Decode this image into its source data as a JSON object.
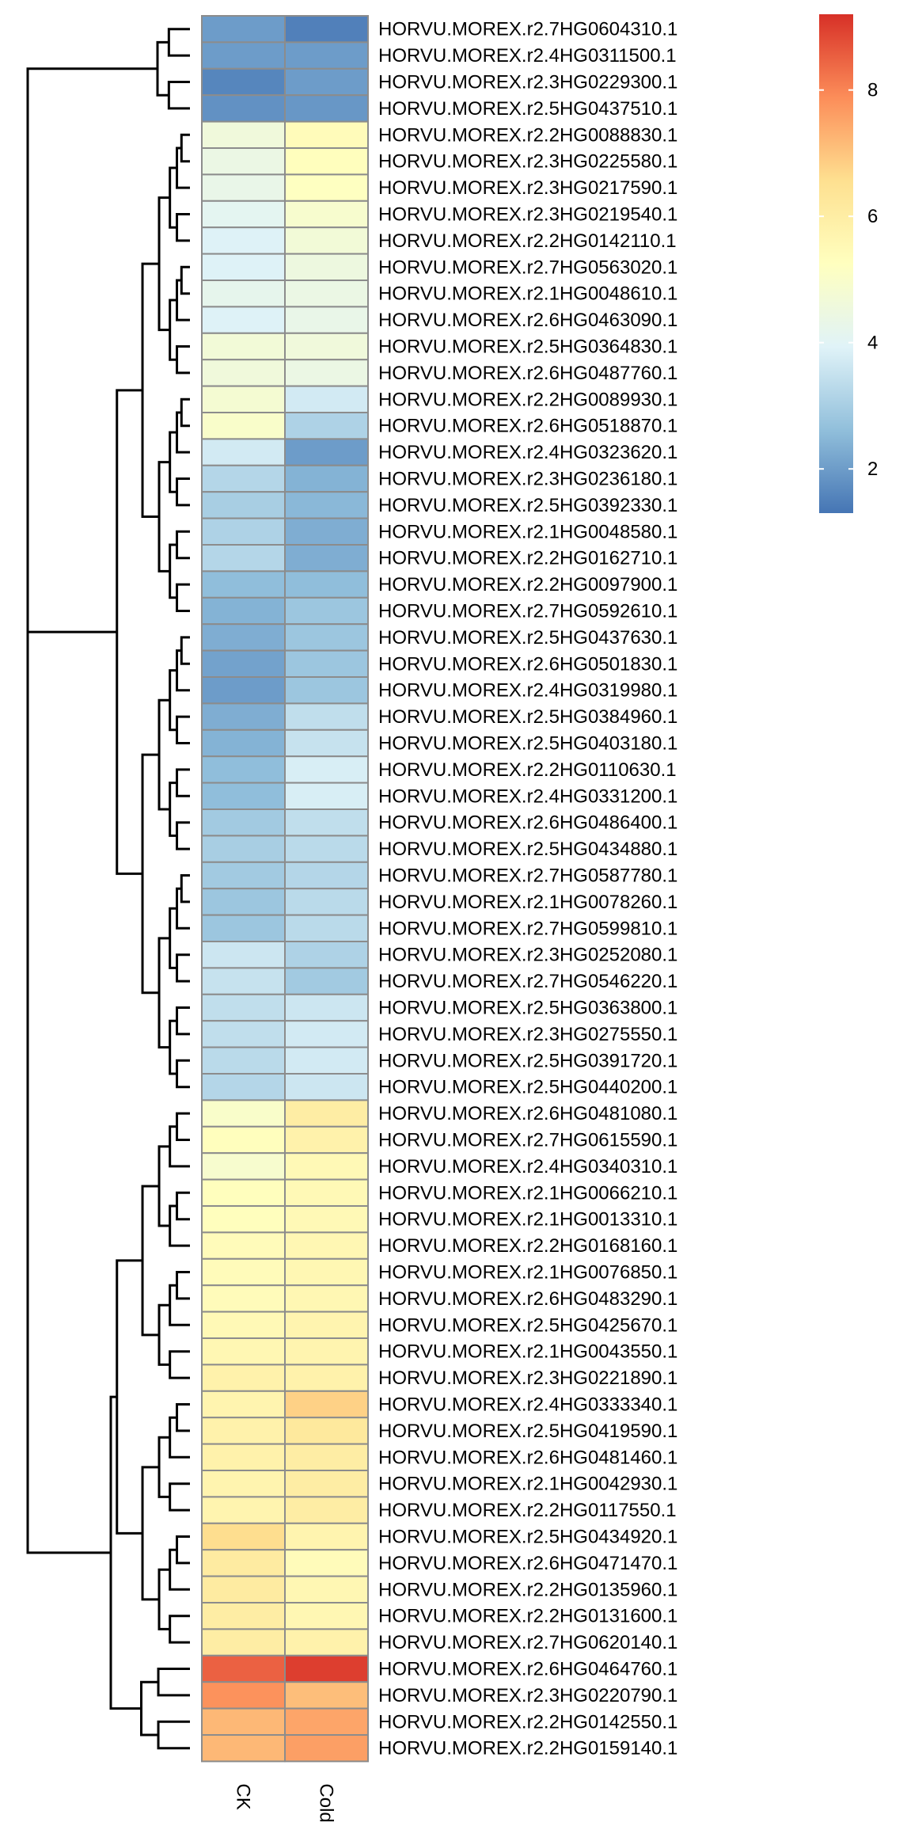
{
  "chart_data": {
    "type": "heatmap",
    "columns": [
      "CK",
      "Cold"
    ],
    "legend": {
      "ticks": [
        2,
        4,
        6,
        8
      ],
      "range": [
        1.3,
        9.2
      ],
      "placement": "top-right",
      "colors": [
        "#4575b4",
        "#91bfdb",
        "#e0f3f8",
        "#ffffbf",
        "#fee090",
        "#fc8d59",
        "#d73027"
      ]
    },
    "rows": [
      {
        "label": "HORVU.MOREX.r2.7HG0604310.1",
        "values": [
          2.0,
          1.5
        ]
      },
      {
        "label": "HORVU.MOREX.r2.4HG0311500.1",
        "values": [
          2.0,
          2.0
        ]
      },
      {
        "label": "HORVU.MOREX.r2.3HG0229300.1",
        "values": [
          1.6,
          2.0
        ]
      },
      {
        "label": "HORVU.MOREX.r2.5HG0437510.1",
        "values": [
          1.8,
          1.9
        ]
      },
      {
        "label": "HORVU.MOREX.r2.2HG0088830.1",
        "values": [
          4.6,
          5.4
        ]
      },
      {
        "label": "HORVU.MOREX.r2.3HG0225580.1",
        "values": [
          4.4,
          5.3
        ]
      },
      {
        "label": "HORVU.MOREX.r2.3HG0217590.1",
        "values": [
          4.3,
          5.2
        ]
      },
      {
        "label": "HORVU.MOREX.r2.3HG0219540.1",
        "values": [
          4.1,
          4.9
        ]
      },
      {
        "label": "HORVU.MOREX.r2.2HG0142110.1",
        "values": [
          3.9,
          4.7
        ]
      },
      {
        "label": "HORVU.MOREX.r2.7HG0563020.1",
        "values": [
          3.9,
          4.5
        ]
      },
      {
        "label": "HORVU.MOREX.r2.1HG0048610.1",
        "values": [
          4.2,
          4.4
        ]
      },
      {
        "label": "HORVU.MOREX.r2.6HG0463090.1",
        "values": [
          3.9,
          4.3
        ]
      },
      {
        "label": "HORVU.MOREX.r2.5HG0364830.1",
        "values": [
          4.7,
          4.6
        ]
      },
      {
        "label": "HORVU.MOREX.r2.6HG0487760.1",
        "values": [
          4.6,
          4.4
        ]
      },
      {
        "label": "HORVU.MOREX.r2.2HG0089930.1",
        "values": [
          4.8,
          3.7
        ]
      },
      {
        "label": "HORVU.MOREX.r2.6HG0518870.1",
        "values": [
          5.0,
          3.1
        ]
      },
      {
        "label": "HORVU.MOREX.r2.4HG0323620.1",
        "values": [
          3.7,
          2.0
        ]
      },
      {
        "label": "HORVU.MOREX.r2.3HG0236180.1",
        "values": [
          3.2,
          2.4
        ]
      },
      {
        "label": "HORVU.MOREX.r2.5HG0392330.1",
        "values": [
          3.0,
          2.5
        ]
      },
      {
        "label": "HORVU.MOREX.r2.1HG0048580.1",
        "values": [
          3.1,
          2.3
        ]
      },
      {
        "label": "HORVU.MOREX.r2.2HG0162710.1",
        "values": [
          3.2,
          2.3
        ]
      },
      {
        "label": "HORVU.MOREX.r2.2HG0097900.1",
        "values": [
          2.6,
          2.6
        ]
      },
      {
        "label": "HORVU.MOREX.r2.7HG0592610.1",
        "values": [
          2.4,
          2.8
        ]
      },
      {
        "label": "HORVU.MOREX.r2.5HG0437630.1",
        "values": [
          2.3,
          2.8
        ]
      },
      {
        "label": "HORVU.MOREX.r2.6HG0501830.1",
        "values": [
          2.1,
          2.8
        ]
      },
      {
        "label": "HORVU.MOREX.r2.4HG0319980.1",
        "values": [
          2.0,
          2.8
        ]
      },
      {
        "label": "HORVU.MOREX.r2.5HG0384960.1",
        "values": [
          2.3,
          3.4
        ]
      },
      {
        "label": "HORVU.MOREX.r2.5HG0403180.1",
        "values": [
          2.4,
          3.5
        ]
      },
      {
        "label": "HORVU.MOREX.r2.2HG0110630.1",
        "values": [
          2.6,
          3.8
        ]
      },
      {
        "label": "HORVU.MOREX.r2.4HG0331200.1",
        "values": [
          2.6,
          3.8
        ]
      },
      {
        "label": "HORVU.MOREX.r2.6HG0486400.1",
        "values": [
          2.9,
          3.4
        ]
      },
      {
        "label": "HORVU.MOREX.r2.5HG0434880.1",
        "values": [
          3.0,
          3.3
        ]
      },
      {
        "label": "HORVU.MOREX.r2.7HG0587780.1",
        "values": [
          2.9,
          3.2
        ]
      },
      {
        "label": "HORVU.MOREX.r2.1HG0078260.1",
        "values": [
          2.8,
          3.3
        ]
      },
      {
        "label": "HORVU.MOREX.r2.7HG0599810.1",
        "values": [
          2.8,
          3.3
        ]
      },
      {
        "label": "HORVU.MOREX.r2.3HG0252080.1",
        "values": [
          3.6,
          3.1
        ]
      },
      {
        "label": "HORVU.MOREX.r2.7HG0546220.1",
        "values": [
          3.5,
          2.9
        ]
      },
      {
        "label": "HORVU.MOREX.r2.5HG0363800.1",
        "values": [
          3.4,
          3.6
        ]
      },
      {
        "label": "HORVU.MOREX.r2.3HG0275550.1",
        "values": [
          3.4,
          3.7
        ]
      },
      {
        "label": "HORVU.MOREX.r2.5HG0391720.1",
        "values": [
          3.3,
          3.7
        ]
      },
      {
        "label": "HORVU.MOREX.r2.5HG0440200.1",
        "values": [
          3.2,
          3.6
        ]
      },
      {
        "label": "HORVU.MOREX.r2.6HG0481080.1",
        "values": [
          5.0,
          6.0
        ]
      },
      {
        "label": "HORVU.MOREX.r2.7HG0615590.1",
        "values": [
          5.3,
          5.8
        ]
      },
      {
        "label": "HORVU.MOREX.r2.4HG0340310.1",
        "values": [
          4.9,
          5.5
        ]
      },
      {
        "label": "HORVU.MOREX.r2.1HG0066210.1",
        "values": [
          5.3,
          5.5
        ]
      },
      {
        "label": "HORVU.MOREX.r2.1HG0013310.1",
        "values": [
          5.3,
          5.5
        ]
      },
      {
        "label": "HORVU.MOREX.r2.2HG0168160.1",
        "values": [
          5.4,
          5.6
        ]
      },
      {
        "label": "HORVU.MOREX.r2.1HG0076850.1",
        "values": [
          5.4,
          5.6
        ]
      },
      {
        "label": "HORVU.MOREX.r2.6HG0483290.1",
        "values": [
          5.4,
          5.6
        ]
      },
      {
        "label": "HORVU.MOREX.r2.5HG0425670.1",
        "values": [
          5.5,
          5.7
        ]
      },
      {
        "label": "HORVU.MOREX.r2.1HG0043550.1",
        "values": [
          5.6,
          5.7
        ]
      },
      {
        "label": "HORVU.MOREX.r2.3HG0221890.1",
        "values": [
          5.8,
          5.8
        ]
      },
      {
        "label": "HORVU.MOREX.r2.4HG0333340.1",
        "values": [
          5.7,
          6.8
        ]
      },
      {
        "label": "HORVU.MOREX.r2.5HG0419590.1",
        "values": [
          5.8,
          6.2
        ]
      },
      {
        "label": "HORVU.MOREX.r2.6HG0481460.1",
        "values": [
          5.8,
          6.0
        ]
      },
      {
        "label": "HORVU.MOREX.r2.1HG0042930.1",
        "values": [
          5.7,
          6.0
        ]
      },
      {
        "label": "HORVU.MOREX.r2.2HG0117550.1",
        "values": [
          5.7,
          6.0
        ]
      },
      {
        "label": "HORVU.MOREX.r2.5HG0434920.1",
        "values": [
          6.6,
          5.7
        ]
      },
      {
        "label": "HORVU.MOREX.r2.6HG0471470.1",
        "values": [
          6.1,
          5.4
        ]
      },
      {
        "label": "HORVU.MOREX.r2.2HG0135960.1",
        "values": [
          6.1,
          5.6
        ]
      },
      {
        "label": "HORVU.MOREX.r2.2HG0131600.1",
        "values": [
          6.0,
          5.6
        ]
      },
      {
        "label": "HORVU.MOREX.r2.7HG0620140.1",
        "values": [
          6.0,
          5.8
        ]
      },
      {
        "label": "HORVU.MOREX.r2.6HG0464760.1",
        "values": [
          8.5,
          9.0
        ]
      },
      {
        "label": "HORVU.MOREX.r2.3HG0220790.1",
        "values": [
          7.8,
          7.1
        ]
      },
      {
        "label": "HORVU.MOREX.r2.2HG0142550.1",
        "values": [
          7.2,
          7.5
        ]
      },
      {
        "label": "HORVU.MOREX.r2.2HG0159140.1",
        "values": [
          7.2,
          7.6
        ]
      }
    ]
  }
}
